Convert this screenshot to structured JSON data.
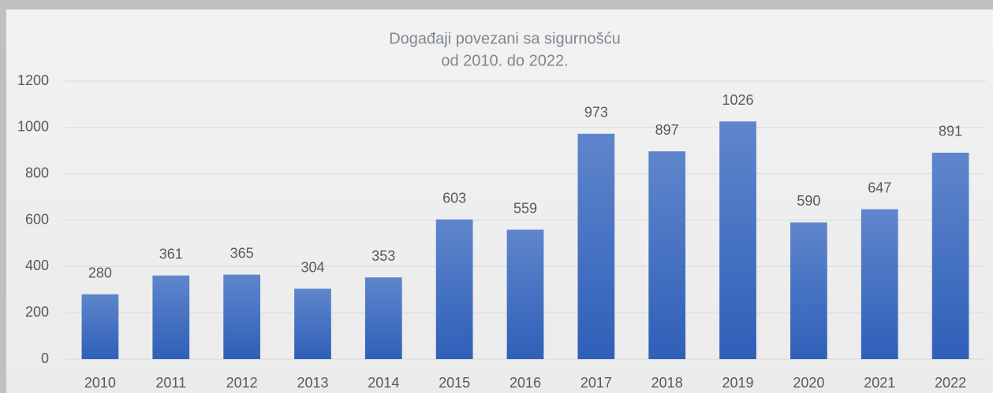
{
  "chart_data": {
    "type": "bar",
    "title": [
      "Događaji povezani sa sigurnošću",
      "od 2010. do 2022."
    ],
    "categories": [
      "2010",
      "2011",
      "2012",
      "2013",
      "2014",
      "2015",
      "2016",
      "2017",
      "2018",
      "2019",
      "2020",
      "2021",
      "2022"
    ],
    "values": [
      280,
      361,
      365,
      304,
      353,
      603,
      559,
      973,
      897,
      1026,
      590,
      647,
      891
    ],
    "color": "#4472c4",
    "ylim": [
      0,
      1200
    ],
    "yticks": [
      0,
      200,
      400,
      600,
      800,
      1000,
      1200
    ],
    "grid": true
  }
}
